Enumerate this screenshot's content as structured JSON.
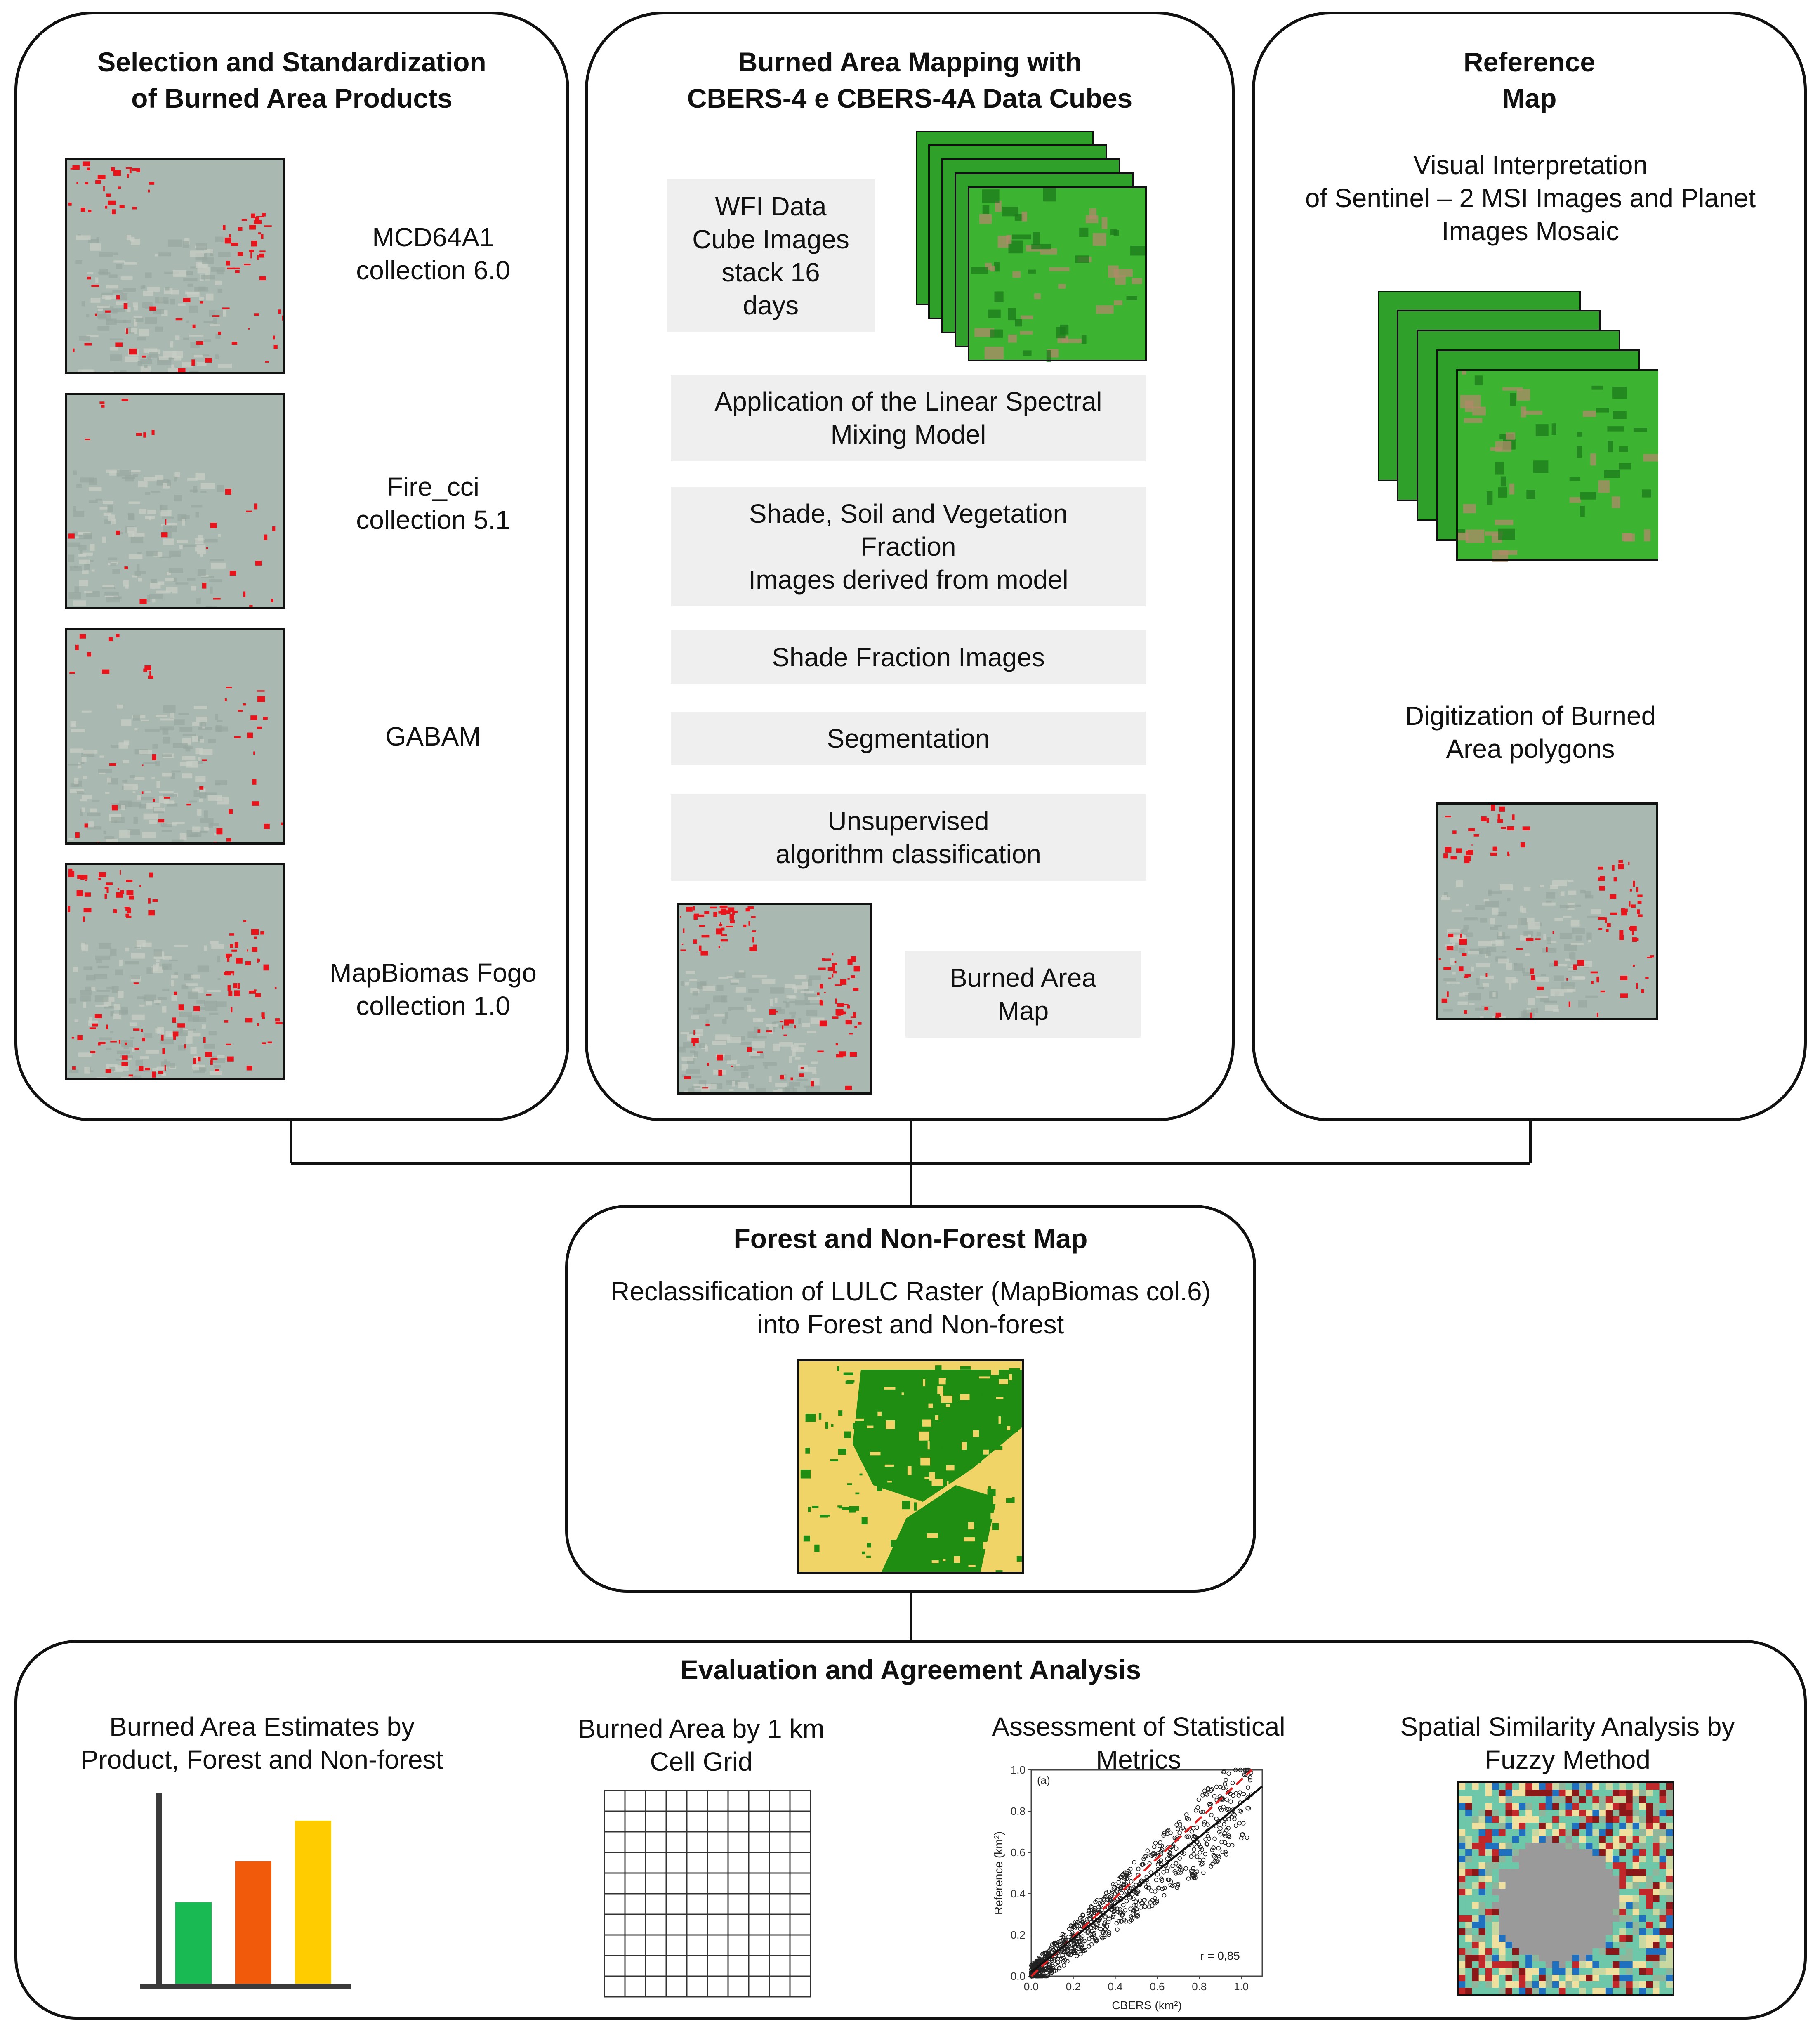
{
  "panels": {
    "selection": {
      "title_line1": "Selection and Standardization",
      "title_line2": "of Burned Area Products",
      "products": [
        {
          "line1": "MCD64A1",
          "line2": "collection 6.0"
        },
        {
          "line1": "Fire_cci",
          "line2": "collection 5.1"
        },
        {
          "line1": "GABAM",
          "line2": ""
        },
        {
          "line1": "MapBiomas Fogo",
          "line2": "collection 1.0"
        }
      ]
    },
    "mapping": {
      "title_line1": "Burned Area Mapping with",
      "title_line2": "CBERS-4 e CBERS-4A Data Cubes",
      "wfi_lines": [
        "WFI Data",
        "Cube Images",
        "stack 16",
        "days"
      ],
      "steps": [
        {
          "lines": [
            "Application of the Linear Spectral",
            "Mixing Model"
          ]
        },
        {
          "lines": [
            "Shade, Soil and Vegetation",
            "Fraction",
            "Images derived from model"
          ]
        },
        {
          "lines": [
            "Shade Fraction Images"
          ]
        },
        {
          "lines": [
            "Segmentation"
          ]
        },
        {
          "lines": [
            "Unsupervised",
            "algorithm classification"
          ]
        }
      ],
      "output_lines": [
        "Burned Area",
        "Map"
      ]
    },
    "reference": {
      "title_line1": "Reference",
      "title_line2": "Map",
      "desc_lines": [
        "Visual Interpretation",
        "of Sentinel – 2 MSI Images and Planet",
        "Images Mosaic"
      ],
      "digit_lines": [
        "Digitization of Burned",
        "Area polygons"
      ]
    },
    "forest": {
      "title": "Forest and Non-Forest Map",
      "desc_lines": [
        "Reclassification of LULC Raster (MapBiomas col.6)",
        "into Forest and Non-forest"
      ]
    },
    "evaluation": {
      "title": "Evaluation and Agreement Analysis",
      "items": [
        {
          "lines": [
            "Burned Area Estimates by",
            "Product, Forest and Non-forest"
          ]
        },
        {
          "lines": [
            "Burned Area by 1 km",
            "Cell Grid"
          ]
        },
        {
          "lines": [
            "Assessment of Statistical",
            "Metrics"
          ]
        },
        {
          "lines": [
            "Spatial Similarity Analysis by",
            "Fuzzy Method"
          ]
        }
      ]
    }
  },
  "colors": {
    "burned": "#e8141c",
    "map_base": "#aab8b2",
    "forest": "#1f8c12",
    "nonforest": "#f0d468",
    "bar_green": "#19b954",
    "bar_orange": "#f05a0a",
    "bar_yellow": "#ffcc00"
  },
  "bar_chart": {
    "values": [
      0.42,
      0.63,
      0.84
    ]
  },
  "chart_data": {
    "type": "scatter",
    "panel_label": "(a)",
    "xlabel": "CBERS (km²)",
    "ylabel": "Reference (km²)",
    "xlim": [
      0,
      1.1
    ],
    "ylim": [
      0,
      1.0
    ],
    "xticks": [
      "0.0",
      "0.2",
      "0.4",
      "0.6",
      "0.8",
      "1.0"
    ],
    "yticks": [
      "0.0",
      "0.2",
      "0.4",
      "0.6",
      "0.8",
      "1.0"
    ],
    "annotation": "r = 0,85",
    "fit_line": {
      "x": [
        0.0,
        1.1
      ],
      "y": [
        0.02,
        0.92
      ]
    },
    "identity_line": {
      "x": [
        0.0,
        1.05
      ],
      "y": [
        0.0,
        1.0
      ]
    },
    "n_points_approx": 900
  }
}
